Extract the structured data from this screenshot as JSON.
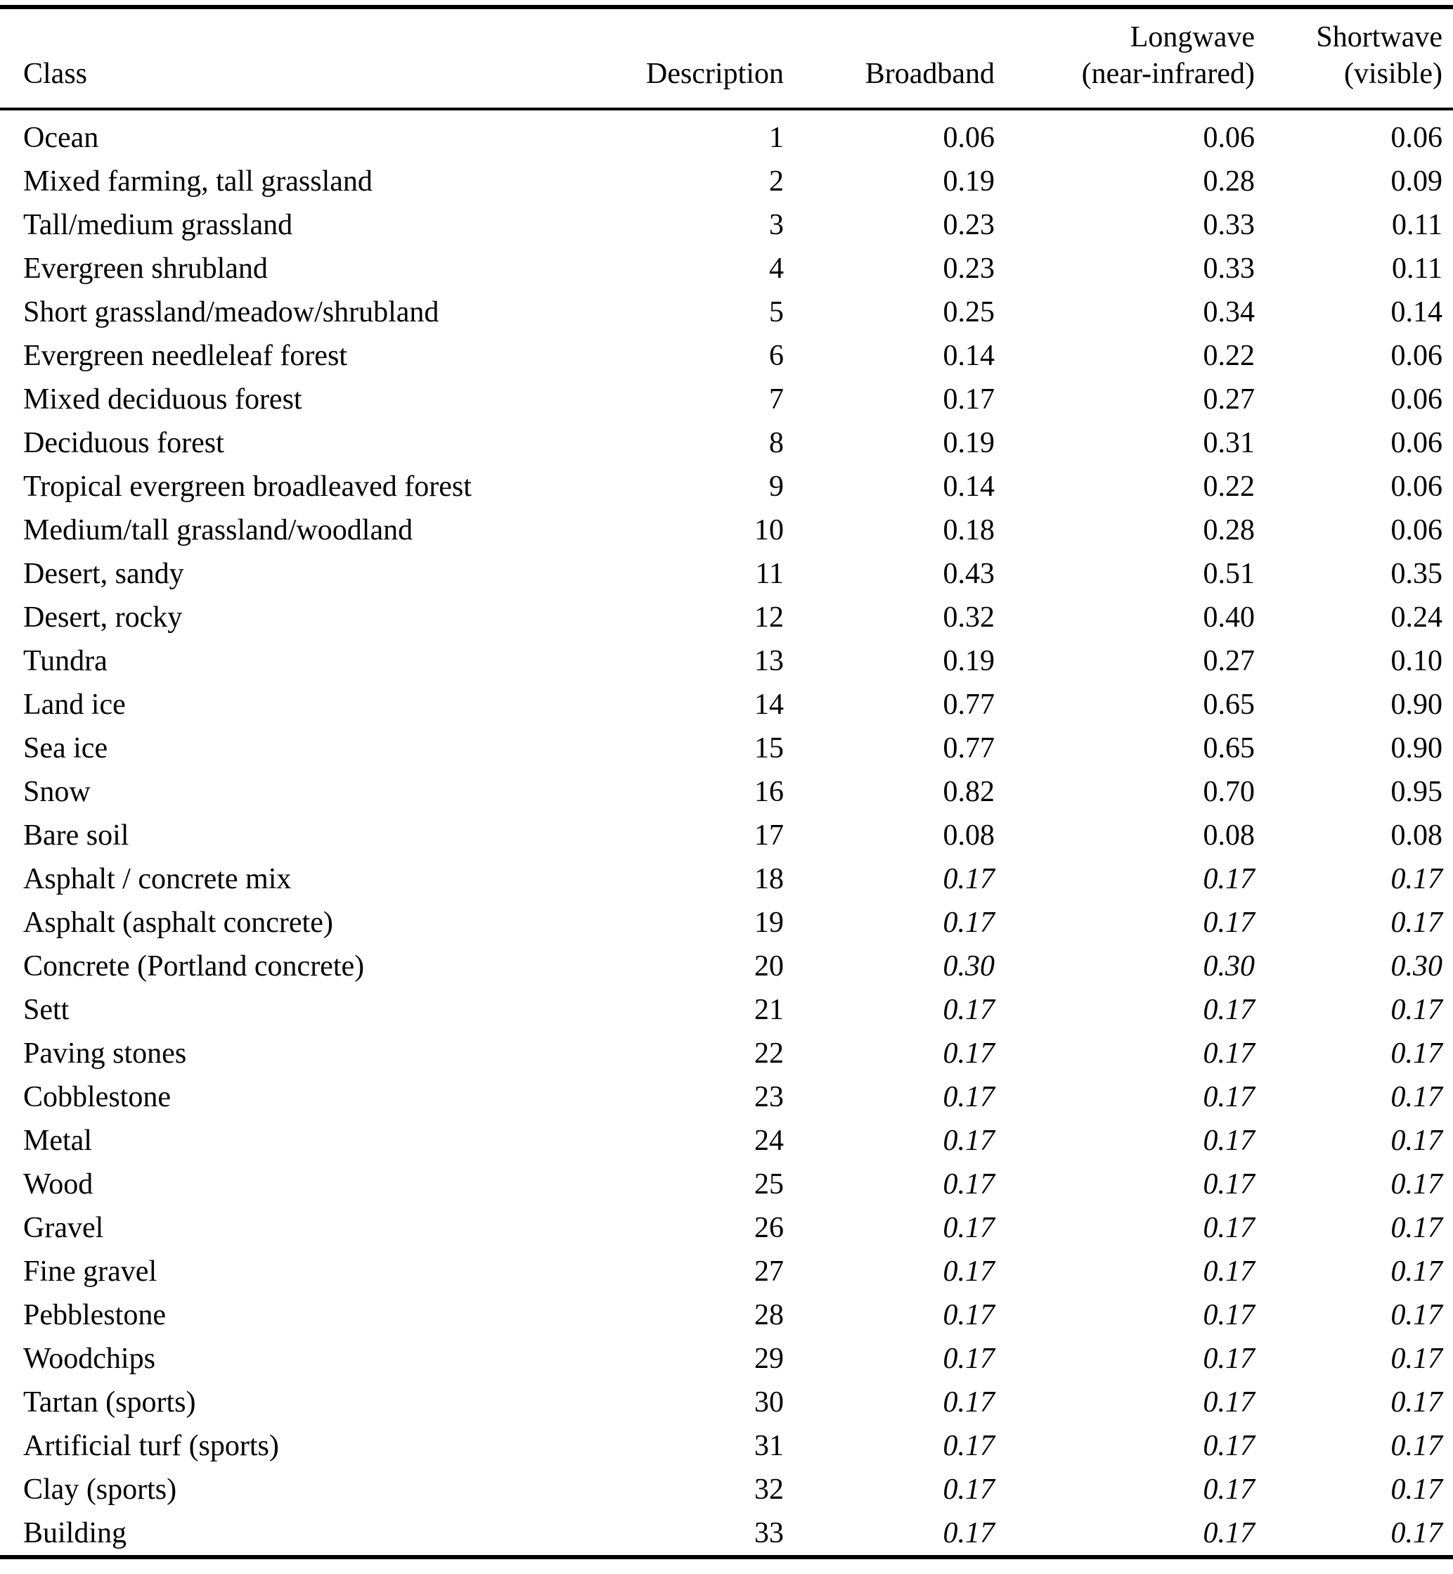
{
  "colors": {
    "text": "#000000",
    "background": "#ffffff",
    "rule": "#000000"
  },
  "table": {
    "columns": [
      {
        "top": "",
        "bottom": "Class"
      },
      {
        "top": "",
        "bottom": "Description"
      },
      {
        "top": "",
        "bottom": "Broadband"
      },
      {
        "top": "Longwave",
        "bottom": "(near-infrared)"
      },
      {
        "top": "Shortwave",
        "bottom": "(visible)"
      }
    ],
    "rows": [
      {
        "class": "Ocean",
        "description": "1",
        "broadband": "0.06",
        "longwave": "0.06",
        "shortwave": "0.06",
        "italic": false
      },
      {
        "class": "Mixed farming, tall grassland",
        "description": "2",
        "broadband": "0.19",
        "longwave": "0.28",
        "shortwave": "0.09",
        "italic": false
      },
      {
        "class": "Tall/medium grassland",
        "description": "3",
        "broadband": "0.23",
        "longwave": "0.33",
        "shortwave": "0.11",
        "italic": false
      },
      {
        "class": "Evergreen shrubland",
        "description": "4",
        "broadband": "0.23",
        "longwave": "0.33",
        "shortwave": "0.11",
        "italic": false
      },
      {
        "class": "Short grassland/meadow/shrubland",
        "description": "5",
        "broadband": "0.25",
        "longwave": "0.34",
        "shortwave": "0.14",
        "italic": false
      },
      {
        "class": "Evergreen needleleaf forest",
        "description": "6",
        "broadband": "0.14",
        "longwave": "0.22",
        "shortwave": "0.06",
        "italic": false
      },
      {
        "class": "Mixed deciduous forest",
        "description": "7",
        "broadband": "0.17",
        "longwave": "0.27",
        "shortwave": "0.06",
        "italic": false
      },
      {
        "class": "Deciduous forest",
        "description": "8",
        "broadband": "0.19",
        "longwave": "0.31",
        "shortwave": "0.06",
        "italic": false
      },
      {
        "class": "Tropical evergreen broadleaved forest",
        "description": "9",
        "broadband": "0.14",
        "longwave": "0.22",
        "shortwave": "0.06",
        "italic": false
      },
      {
        "class": "Medium/tall grassland/woodland",
        "description": "10",
        "broadband": "0.18",
        "longwave": "0.28",
        "shortwave": "0.06",
        "italic": false
      },
      {
        "class": "Desert, sandy",
        "description": "11",
        "broadband": "0.43",
        "longwave": "0.51",
        "shortwave": "0.35",
        "italic": false
      },
      {
        "class": "Desert, rocky",
        "description": "12",
        "broadband": "0.32",
        "longwave": "0.40",
        "shortwave": "0.24",
        "italic": false
      },
      {
        "class": "Tundra",
        "description": "13",
        "broadband": "0.19",
        "longwave": "0.27",
        "shortwave": "0.10",
        "italic": false
      },
      {
        "class": "Land ice",
        "description": "14",
        "broadband": "0.77",
        "longwave": "0.65",
        "shortwave": "0.90",
        "italic": false
      },
      {
        "class": "Sea ice",
        "description": "15",
        "broadband": "0.77",
        "longwave": "0.65",
        "shortwave": "0.90",
        "italic": false
      },
      {
        "class": "Snow",
        "description": "16",
        "broadband": "0.82",
        "longwave": "0.70",
        "shortwave": "0.95",
        "italic": false
      },
      {
        "class": "Bare soil",
        "description": "17",
        "broadband": "0.08",
        "longwave": "0.08",
        "shortwave": "0.08",
        "italic": false
      },
      {
        "class": "Asphalt / concrete mix",
        "description": "18",
        "broadband": "0.17",
        "longwave": "0.17",
        "shortwave": "0.17",
        "italic": true
      },
      {
        "class": "Asphalt (asphalt concrete)",
        "description": "19",
        "broadband": "0.17",
        "longwave": "0.17",
        "shortwave": "0.17",
        "italic": true
      },
      {
        "class": "Concrete (Portland concrete)",
        "description": "20",
        "broadband": "0.30",
        "longwave": "0.30",
        "shortwave": "0.30",
        "italic": true
      },
      {
        "class": "Sett",
        "description": "21",
        "broadband": "0.17",
        "longwave": "0.17",
        "shortwave": "0.17",
        "italic": true
      },
      {
        "class": "Paving stones",
        "description": "22",
        "broadband": "0.17",
        "longwave": "0.17",
        "shortwave": "0.17",
        "italic": true
      },
      {
        "class": "Cobblestone",
        "description": "23",
        "broadband": "0.17",
        "longwave": "0.17",
        "shortwave": "0.17",
        "italic": true
      },
      {
        "class": "Metal",
        "description": "24",
        "broadband": "0.17",
        "longwave": "0.17",
        "shortwave": "0.17",
        "italic": true
      },
      {
        "class": "Wood",
        "description": "25",
        "broadband": "0.17",
        "longwave": "0.17",
        "shortwave": "0.17",
        "italic": true
      },
      {
        "class": "Gravel",
        "description": "26",
        "broadband": "0.17",
        "longwave": "0.17",
        "shortwave": "0.17",
        "italic": true
      },
      {
        "class": "Fine gravel",
        "description": "27",
        "broadband": "0.17",
        "longwave": "0.17",
        "shortwave": "0.17",
        "italic": true
      },
      {
        "class": "Pebblestone",
        "description": "28",
        "broadband": "0.17",
        "longwave": "0.17",
        "shortwave": "0.17",
        "italic": true
      },
      {
        "class": "Woodchips",
        "description": "29",
        "broadband": "0.17",
        "longwave": "0.17",
        "shortwave": "0.17",
        "italic": true
      },
      {
        "class": "Tartan (sports)",
        "description": "30",
        "broadband": "0.17",
        "longwave": "0.17",
        "shortwave": "0.17",
        "italic": true
      },
      {
        "class": "Artificial turf (sports)",
        "description": "31",
        "broadband": "0.17",
        "longwave": "0.17",
        "shortwave": "0.17",
        "italic": true
      },
      {
        "class": "Clay (sports)",
        "description": "32",
        "broadband": "0.17",
        "longwave": "0.17",
        "shortwave": "0.17",
        "italic": true
      },
      {
        "class": "Building",
        "description": "33",
        "broadband": "0.17",
        "longwave": "0.17",
        "shortwave": "0.17",
        "italic": true
      }
    ]
  }
}
